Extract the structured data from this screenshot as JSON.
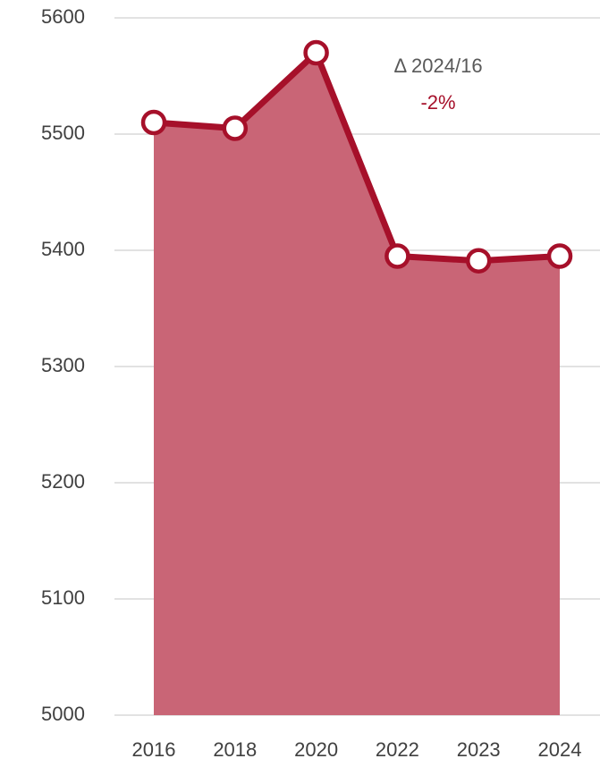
{
  "chart_data": {
    "type": "area",
    "categories": [
      "2016",
      "2018",
      "2020",
      "2022",
      "2023",
      "2024"
    ],
    "values": [
      5510,
      5505,
      5570,
      5395,
      5391,
      5395
    ],
    "color": "#a6102a",
    "area_color": "#c96576",
    "marker_fill": "#ffffff",
    "ylim": [
      5000,
      5600
    ],
    "yticks": [
      5000,
      5100,
      5200,
      5300,
      5400,
      5500,
      5600
    ],
    "grid": true,
    "annotations": [
      "Δ 2024/16",
      "-2%"
    ],
    "annotation_colors": [
      "#595959",
      "#a6102a"
    ]
  }
}
